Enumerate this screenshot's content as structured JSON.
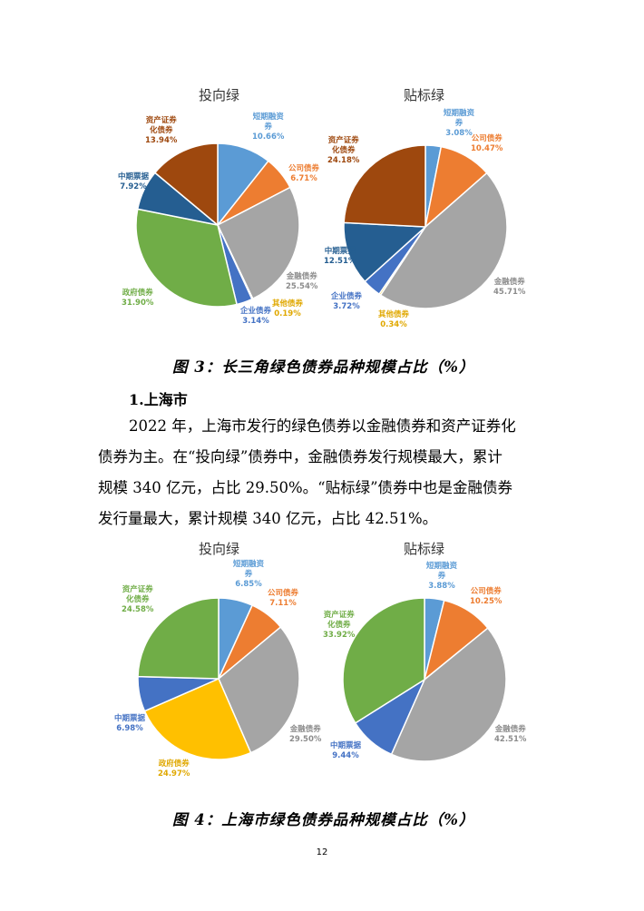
{
  "figure3": {
    "caption": "图 3：长三角绿色债券品种规模占比（%）",
    "charts": [
      {
        "title": "投向绿",
        "slices": [
          {
            "name": "短期融资券",
            "line1": "短期融资",
            "line2": "券",
            "value": 10.66,
            "label": "10.66%",
            "color": "#5b9bd5",
            "label_color": "#5b9bd5"
          },
          {
            "name": "公司债券",
            "line1": "公司债券",
            "line2": "",
            "value": 6.71,
            "label": "6.71%",
            "color": "#ed7d31",
            "label_color": "#ed7d31"
          },
          {
            "name": "金融债券",
            "line1": "金融债券",
            "line2": "",
            "value": 25.54,
            "label": "25.54%",
            "color": "#a5a5a5",
            "label_color": "#8c8c8c"
          },
          {
            "name": "其他债券",
            "line1": "其他债券",
            "line2": "",
            "value": 0.19,
            "label": "0.19%",
            "color": "#ffc000",
            "label_color": "#e0a800"
          },
          {
            "name": "企业债券",
            "line1": "企业债券",
            "line2": "",
            "value": 3.14,
            "label": "3.14%",
            "color": "#4472c4",
            "label_color": "#4472c4"
          },
          {
            "name": "政府债券",
            "line1": "政府债券",
            "line2": "",
            "value": 31.9,
            "label": "31.90%",
            "color": "#70ad47",
            "label_color": "#70ad47"
          },
          {
            "name": "中期票据",
            "line1": "中期票据",
            "line2": "",
            "value": 7.92,
            "label": "7.92%",
            "color": "#255e91",
            "label_color": "#255e91"
          },
          {
            "name": "资产证券化债券",
            "line1": "资产证券",
            "line2": "化债券",
            "value": 13.94,
            "label": "13.94%",
            "color": "#9e480e",
            "label_color": "#9e480e"
          }
        ]
      },
      {
        "title": "贴标绿",
        "slices": [
          {
            "name": "短期融资券",
            "line1": "短期融资",
            "line2": "券",
            "value": 3.08,
            "label": "3.08%",
            "color": "#5b9bd5",
            "label_color": "#5b9bd5"
          },
          {
            "name": "公司债券",
            "line1": "公司债券",
            "line2": "",
            "value": 10.47,
            "label": "10.47%",
            "color": "#ed7d31",
            "label_color": "#ed7d31"
          },
          {
            "name": "金融债券",
            "line1": "金融债券",
            "line2": "",
            "value": 45.71,
            "label": "45.71%",
            "color": "#a5a5a5",
            "label_color": "#8c8c8c"
          },
          {
            "name": "其他债券",
            "line1": "其他债券",
            "line2": "",
            "value": 0.34,
            "label": "0.34%",
            "color": "#ffc000",
            "label_color": "#e0a800"
          },
          {
            "name": "企业债券",
            "line1": "企业债券",
            "line2": "",
            "value": 3.72,
            "label": "3.72%",
            "color": "#4472c4",
            "label_color": "#4472c4"
          },
          {
            "name": "中期票据",
            "line1": "中期票据",
            "line2": "",
            "value": 12.51,
            "label": "12.51%",
            "color": "#255e91",
            "label_color": "#255e91"
          },
          {
            "name": "资产证券化债券",
            "line1": "资产证券",
            "line2": "化债券",
            "value": 24.18,
            "label": "24.18%",
            "color": "#9e480e",
            "label_color": "#9e480e"
          }
        ]
      }
    ]
  },
  "section": {
    "heading": "1.上海市",
    "lines": [
      "2022 年，上海市发行的绿色债券以金融债券和资产证券化",
      "债券为主。在“投向绿”债券中，金融债券发行规模最大，累计",
      "规模 340 亿元，占比 29.50%。“贴标绿”债券中也是金融债券",
      "发行量最大，累计规模 340 亿元，占比 42.51%。"
    ]
  },
  "figure4": {
    "caption": "图 4：上海市绿色债券品种规模占比（%）",
    "charts": [
      {
        "title": "投向绿",
        "slices": [
          {
            "name": "短期融资券",
            "line1": "短期融资",
            "line2": "券",
            "value": 6.85,
            "label": "6.85%",
            "color": "#5b9bd5",
            "label_color": "#5b9bd5"
          },
          {
            "name": "公司债券",
            "line1": "公司债券",
            "line2": "",
            "value": 7.11,
            "label": "7.11%",
            "color": "#ed7d31",
            "label_color": "#ed7d31"
          },
          {
            "name": "金融债券",
            "line1": "金融债券",
            "line2": "",
            "value": 29.5,
            "label": "29.50%",
            "color": "#a5a5a5",
            "label_color": "#8c8c8c"
          },
          {
            "name": "政府债券",
            "line1": "政府债券",
            "line2": "",
            "value": 24.97,
            "label": "24.97%",
            "color": "#ffc000",
            "label_color": "#e0a800"
          },
          {
            "name": "中期票据",
            "line1": "中期票据",
            "line2": "",
            "value": 6.98,
            "label": "6.98%",
            "color": "#4472c4",
            "label_color": "#4472c4"
          },
          {
            "name": "资产证券化债券",
            "line1": "资产证券",
            "line2": "化债券",
            "value": 24.58,
            "label": "24.58%",
            "color": "#70ad47",
            "label_color": "#70ad47"
          }
        ]
      },
      {
        "title": "贴标绿",
        "slices": [
          {
            "name": "短期融资券",
            "line1": "短期融资",
            "line2": "券",
            "value": 3.88,
            "label": "3.88%",
            "color": "#5b9bd5",
            "label_color": "#5b9bd5"
          },
          {
            "name": "公司债券",
            "line1": "公司债券",
            "line2": "",
            "value": 10.25,
            "label": "10.25%",
            "color": "#ed7d31",
            "label_color": "#ed7d31"
          },
          {
            "name": "金融债券",
            "line1": "金融债券",
            "line2": "",
            "value": 42.51,
            "label": "42.51%",
            "color": "#a5a5a5",
            "label_color": "#8c8c8c"
          },
          {
            "name": "中期票据",
            "line1": "中期票据",
            "line2": "",
            "value": 9.44,
            "label": "9.44%",
            "color": "#4472c4",
            "label_color": "#4472c4"
          },
          {
            "name": "资产证券化债券",
            "line1": "资产证券",
            "line2": "化债券",
            "value": 33.92,
            "label": "33.92%",
            "color": "#70ad47",
            "label_color": "#70ad47"
          }
        ]
      }
    ]
  },
  "page_number": "12",
  "chart_data": [
    {
      "type": "pie",
      "title": "投向绿",
      "categories": [
        "短期融资券",
        "公司债券",
        "金融债券",
        "其他债券",
        "企业债券",
        "政府债券",
        "中期票据",
        "资产证券化债券"
      ],
      "values": [
        10.66,
        6.71,
        25.54,
        0.19,
        3.14,
        31.9,
        7.92,
        13.94
      ]
    },
    {
      "type": "pie",
      "title": "贴标绿",
      "categories": [
        "短期融资券",
        "公司债券",
        "金融债券",
        "其他债券",
        "企业债券",
        "中期票据",
        "资产证券化债券"
      ],
      "values": [
        3.08,
        10.47,
        45.71,
        0.34,
        3.72,
        12.51,
        24.18
      ]
    },
    {
      "type": "pie",
      "title": "投向绿",
      "categories": [
        "短期融资券",
        "公司债券",
        "金融债券",
        "政府债券",
        "中期票据",
        "资产证券化债券"
      ],
      "values": [
        6.85,
        7.11,
        29.5,
        24.97,
        6.98,
        24.58
      ]
    },
    {
      "type": "pie",
      "title": "贴标绿",
      "categories": [
        "短期融资券",
        "公司债券",
        "金融债券",
        "中期票据",
        "资产证券化债券"
      ],
      "values": [
        3.88,
        10.25,
        42.51,
        9.44,
        33.92
      ]
    }
  ]
}
